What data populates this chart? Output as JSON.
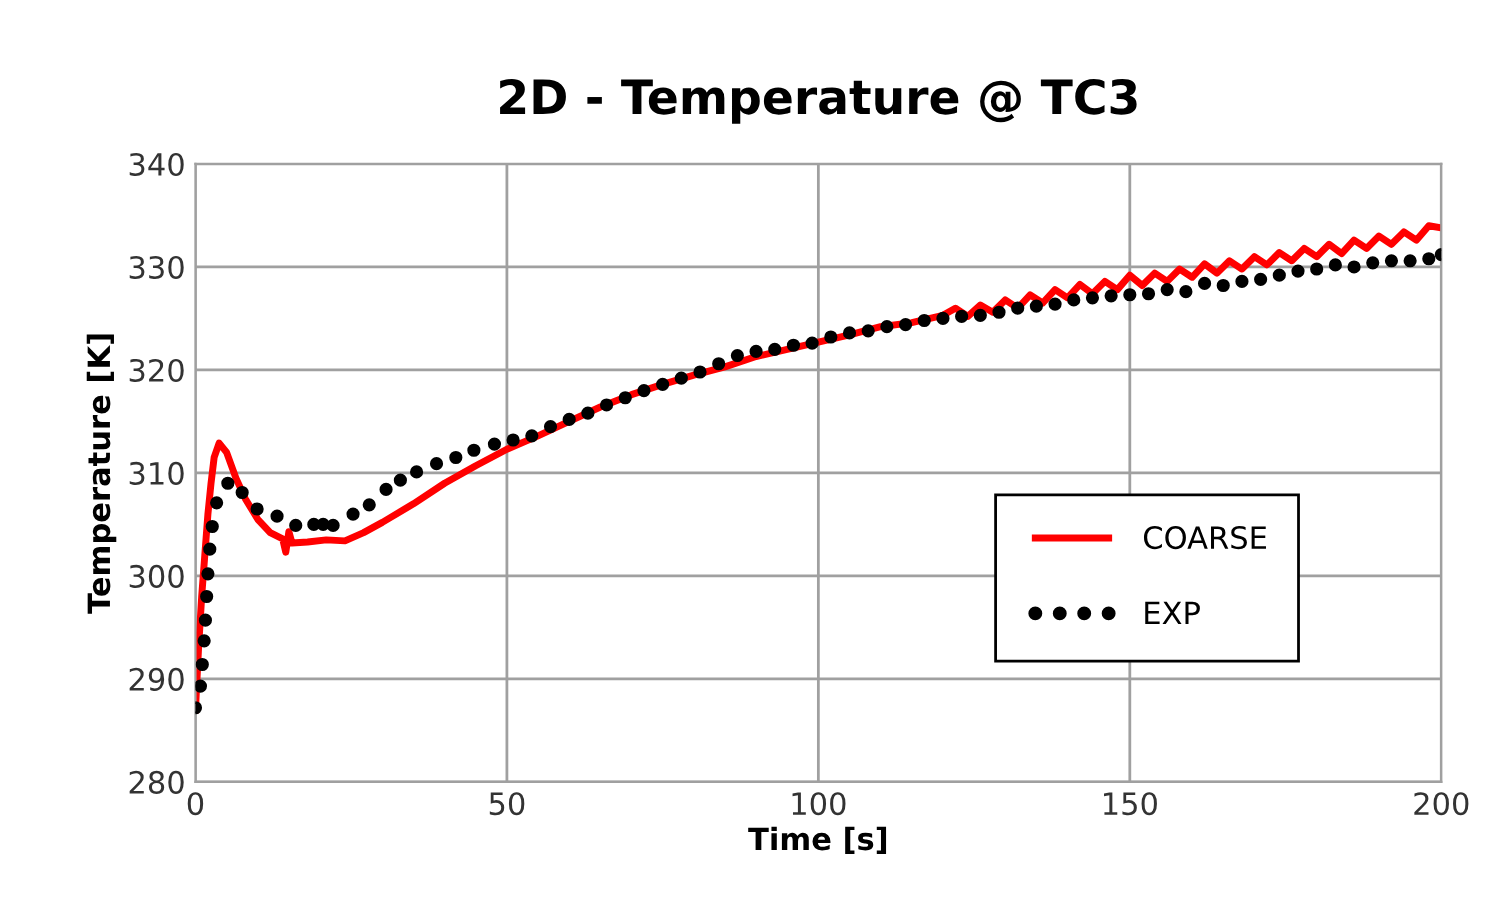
{
  "chart_data": {
    "type": "line",
    "title": "2D - Temperature @ TC3",
    "xlabel": "Time [s]",
    "ylabel": "Temperature [K]",
    "xlim": [
      0,
      200
    ],
    "xticks": [
      0,
      50,
      100,
      150,
      200
    ],
    "ylim": [
      280,
      340
    ],
    "yticks": [
      280,
      290,
      300,
      310,
      320,
      330,
      340
    ],
    "grid": true,
    "legend": "right",
    "series": [
      {
        "name": "COARSE",
        "color": "#ff0000",
        "line_style": "solid",
        "x": [
          0,
          0.5,
          1,
          1.5,
          2,
          2.5,
          3,
          3.8,
          5,
          6.5,
          8,
          10,
          12,
          14,
          14.5,
          15,
          15.5,
          18,
          21,
          24,
          27,
          30,
          35,
          40,
          45,
          50,
          55,
          60,
          65,
          70,
          75,
          80,
          85,
          90,
          95,
          100,
          105,
          110,
          115,
          120,
          122,
          124,
          126,
          128,
          130,
          132,
          134,
          136,
          138,
          140,
          142,
          144,
          146,
          148,
          150,
          152,
          154,
          156,
          158,
          160,
          162,
          164,
          166,
          168,
          170,
          172,
          174,
          176,
          178,
          180,
          182,
          184,
          186,
          188,
          190,
          192,
          194,
          196,
          198,
          200
        ],
        "values": [
          287,
          293,
          298,
          302,
          306,
          309,
          311.5,
          312.9,
          312,
          309.5,
          307.5,
          305.5,
          304.2,
          303.6,
          302.3,
          304.3,
          303.2,
          303.3,
          303.5,
          303.4,
          304.2,
          305.2,
          307,
          309,
          310.7,
          312.3,
          313.6,
          315,
          316.4,
          317.6,
          318.6,
          319.5,
          320.3,
          321.3,
          322,
          322.7,
          323.4,
          324.2,
          324.6,
          325.3,
          326,
          325.2,
          326.3,
          325.6,
          326.8,
          326,
          327.3,
          326.5,
          327.8,
          327,
          328.3,
          327.4,
          328.6,
          327.8,
          329.2,
          328.2,
          329.4,
          328.6,
          329.8,
          329,
          330.3,
          329.4,
          330.6,
          329.8,
          331,
          330.2,
          331.4,
          330.6,
          331.8,
          331,
          332.2,
          331.3,
          332.6,
          331.8,
          333,
          332.2,
          333.4,
          332.6,
          334,
          333.8
        ]
      },
      {
        "name": "EXP",
        "type": "scatter",
        "color": "#000000",
        "marker": "circle",
        "x": [
          0,
          0.8,
          1.1,
          1.4,
          1.6,
          1.8,
          2,
          2.3,
          2.7,
          3.4,
          5.2,
          7.5,
          9.9,
          13.1,
          16.1,
          19,
          20.5,
          22.1,
          25.3,
          27.9,
          30.6,
          32.9,
          35.5,
          38.7,
          41.8,
          44.7,
          48,
          51,
          54,
          57,
          60,
          63,
          66,
          69,
          72,
          75,
          78,
          81,
          84,
          87,
          90,
          93,
          96,
          99,
          102,
          105,
          108,
          111,
          114,
          117,
          120,
          123,
          126,
          129,
          132,
          135,
          138,
          141,
          144,
          147,
          150,
          153,
          156,
          159,
          162,
          165,
          168,
          171,
          174,
          177,
          180,
          183,
          186,
          189,
          192,
          195,
          198,
          200
        ],
        "values": [
          287.2,
          289.3,
          291.4,
          293.7,
          295.7,
          298,
          300.2,
          302.6,
          304.8,
          307.1,
          309,
          308.1,
          306.5,
          305.8,
          304.9,
          305,
          305,
          304.9,
          306,
          306.9,
          308.4,
          309.3,
          310.1,
          310.9,
          311.5,
          312.2,
          312.8,
          313.2,
          313.6,
          314.5,
          315.2,
          315.8,
          316.6,
          317.3,
          318,
          318.6,
          319.2,
          319.8,
          320.6,
          321.4,
          321.8,
          322,
          322.4,
          322.6,
          323.2,
          323.6,
          323.8,
          324.2,
          324.4,
          324.8,
          325,
          325.2,
          325.3,
          325.6,
          326,
          326.2,
          326.4,
          326.8,
          327,
          327.2,
          327.3,
          327.4,
          327.8,
          327.6,
          328.4,
          328.2,
          328.6,
          328.8,
          329.2,
          329.6,
          329.8,
          330.2,
          330,
          330.4,
          330.6,
          330.6,
          330.8,
          331.2
        ]
      }
    ]
  }
}
